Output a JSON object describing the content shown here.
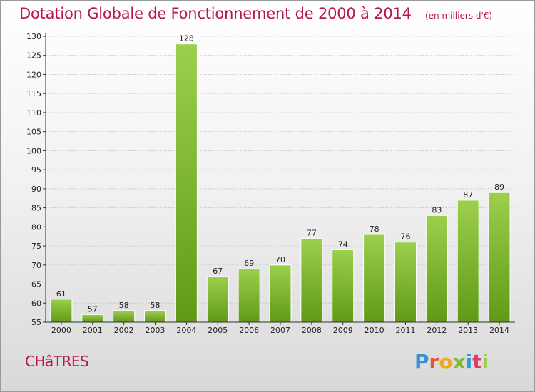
{
  "header": {
    "title": "Dotation Globale de Fonctionnement de 2000 à 2014",
    "unit": "(en milliers d'€)"
  },
  "footer": {
    "town": "CHâTRES",
    "brand": "Proxiti"
  },
  "colors": {
    "title": "#b8174a",
    "bar_top": "#9ccf4c",
    "bar_bottom": "#5f9a16",
    "bar_edge": "#ffffff",
    "axis": "#333333",
    "grid": "#c0c0c0",
    "brand": [
      "#3b8fd6",
      "#e8542a",
      "#f2a81d",
      "#7dbb31",
      "#2a9fd8",
      "#e03b6d",
      "#9ccf4c"
    ]
  },
  "chart_data": {
    "type": "bar",
    "title": "Dotation Globale de Fonctionnement de 2000 à 2014",
    "subtitle": "(en milliers d'€)",
    "categories": [
      "2000",
      "2001",
      "2002",
      "2003",
      "2004",
      "2005",
      "2006",
      "2007",
      "2008",
      "2009",
      "2010",
      "2011",
      "2012",
      "2013",
      "2014"
    ],
    "values": [
      61,
      57,
      58,
      58,
      128,
      67,
      69,
      70,
      77,
      74,
      78,
      76,
      83,
      87,
      89
    ],
    "xlabel": "",
    "ylabel": "",
    "ylim": [
      55,
      130
    ],
    "yticks": [
      55,
      60,
      65,
      70,
      75,
      80,
      85,
      90,
      95,
      100,
      105,
      110,
      115,
      120,
      125,
      130
    ],
    "grid": true,
    "data_labels": true
  }
}
